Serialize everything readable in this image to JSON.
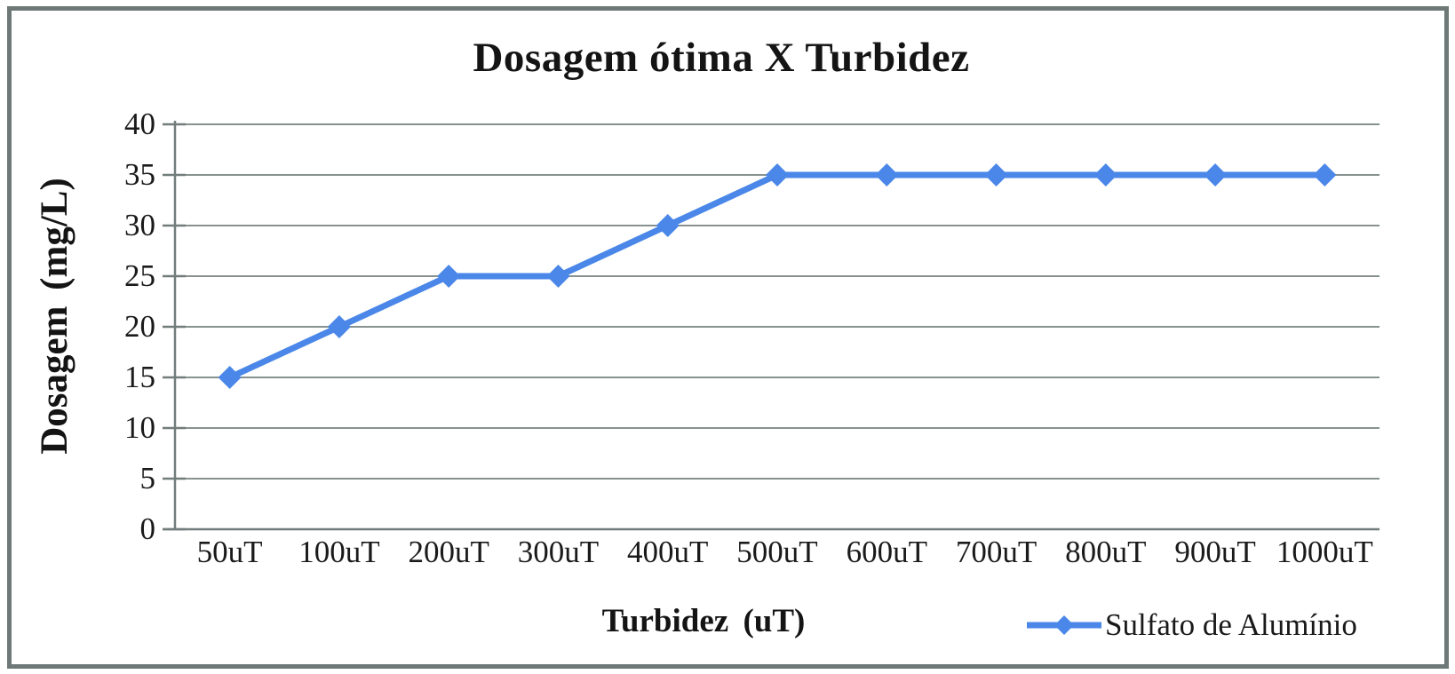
{
  "chart_data": {
    "type": "line",
    "title": "Dosagem ótima X Turbidez",
    "xlabel": "Turbidez (uT)",
    "ylabel": "Dosagem (mg/L)",
    "categories": [
      "50uT",
      "100uT",
      "200uT",
      "300uT",
      "400uT",
      "500uT",
      "600uT",
      "700uT",
      "800uT",
      "900uT",
      "1000uT"
    ],
    "series": [
      {
        "name": "Sulfato de Alumínio",
        "values": [
          15,
          20,
          25,
          25,
          30,
          35,
          35,
          35,
          35,
          35,
          35
        ],
        "marker": "diamond"
      }
    ],
    "ylim": [
      0,
      40
    ],
    "yticks": [
      0,
      5,
      10,
      15,
      20,
      25,
      30,
      35,
      40
    ],
    "grid": true,
    "legend_position": "bottom-right"
  },
  "colors": {
    "series_blue": "#4a87e8",
    "gridline_gray": "#879190",
    "axis_gray": "#717c7b",
    "frame_gray": "#6e7877",
    "text_black": "#141414"
  }
}
